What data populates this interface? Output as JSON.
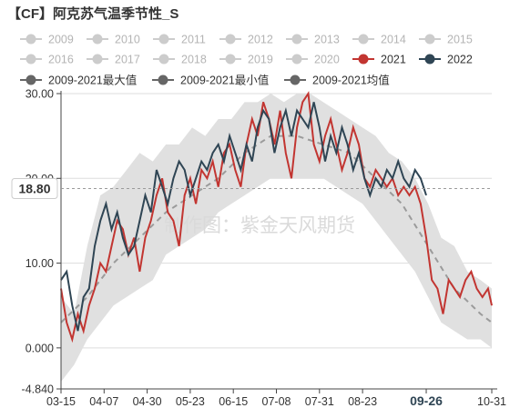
{
  "title": "【CF】阿克苏气温季节性_S",
  "watermark": "制作图：紫金天风期货",
  "colors": {
    "inactive": "#cccccc",
    "active_legend_text": "#333333",
    "inactive_legend_text": "#b4b4b4",
    "series_2021": "#c23531",
    "series_2022": "#2f4554",
    "band": "#e0e0e0",
    "avg_line": "#9b9b9b",
    "axis": "#444444",
    "grid": "#dddddd"
  },
  "legend": {
    "row1": [
      "2009",
      "2010",
      "2011",
      "2012",
      "2013",
      "2014",
      "2015"
    ],
    "row2": [
      "2016",
      "2017",
      "2018",
      "2019",
      "2020",
      "2021",
      "2022"
    ],
    "row3": [
      "2009-2021最大值",
      "2009-2021最小值",
      "2009-2021均值"
    ]
  },
  "axis_pointer_label": "18.80",
  "highlighted_x_label": "09-26",
  "chart_data": {
    "type": "line",
    "ylim": [
      -4.84,
      30.0
    ],
    "yticks": [
      "30.00",
      "20.00",
      "10.00",
      "0.000",
      "-4.840"
    ],
    "xticks": [
      "03-15",
      "04-07",
      "04-30",
      "05-23",
      "06-15",
      "07-08",
      "07-31",
      "08-23",
      "09-26",
      "10-31"
    ],
    "xtick_dates": [
      "03-15",
      "04-07",
      "04-30",
      "05-23",
      "06-15",
      "07-08",
      "07-31",
      "08-23",
      "09-26",
      "10-31"
    ],
    "x_start": "03-15",
    "x_end": "10-31",
    "max_band": [
      [
        "03-15",
        6
      ],
      [
        "03-22",
        4
      ],
      [
        "03-29",
        12
      ],
      [
        "04-05",
        18
      ],
      [
        "04-12",
        19
      ],
      [
        "04-19",
        21
      ],
      [
        "04-26",
        23
      ],
      [
        "05-03",
        22
      ],
      [
        "05-10",
        24
      ],
      [
        "05-17",
        24
      ],
      [
        "05-24",
        26
      ],
      [
        "05-31",
        25
      ],
      [
        "06-07",
        27
      ],
      [
        "06-14",
        27
      ],
      [
        "06-21",
        29
      ],
      [
        "06-28",
        29
      ],
      [
        "07-05",
        30
      ],
      [
        "07-12",
        29
      ],
      [
        "07-19",
        30
      ],
      [
        "07-26",
        30
      ],
      [
        "08-02",
        29
      ],
      [
        "08-09",
        28
      ],
      [
        "08-16",
        27
      ],
      [
        "08-23",
        26
      ],
      [
        "08-30",
        25
      ],
      [
        "09-06",
        23
      ],
      [
        "09-13",
        22
      ],
      [
        "09-20",
        20
      ],
      [
        "09-27",
        17
      ],
      [
        "10-04",
        13
      ],
      [
        "10-11",
        12
      ],
      [
        "10-18",
        9
      ],
      [
        "10-25",
        8
      ],
      [
        "10-31",
        7
      ]
    ],
    "min_band": [
      [
        "03-15",
        -4
      ],
      [
        "03-22",
        -2
      ],
      [
        "03-29",
        1
      ],
      [
        "04-05",
        3
      ],
      [
        "04-12",
        5
      ],
      [
        "04-19",
        6
      ],
      [
        "04-26",
        7
      ],
      [
        "05-03",
        8
      ],
      [
        "05-10",
        11
      ],
      [
        "05-17",
        12
      ],
      [
        "05-24",
        13
      ],
      [
        "05-31",
        14
      ],
      [
        "06-07",
        16
      ],
      [
        "06-14",
        17
      ],
      [
        "06-21",
        18
      ],
      [
        "06-28",
        19
      ],
      [
        "07-05",
        20
      ],
      [
        "07-12",
        20
      ],
      [
        "07-19",
        20
      ],
      [
        "07-26",
        20
      ],
      [
        "08-02",
        20
      ],
      [
        "08-09",
        19
      ],
      [
        "08-16",
        18
      ],
      [
        "08-23",
        17
      ],
      [
        "08-30",
        15
      ],
      [
        "09-06",
        13
      ],
      [
        "09-13",
        11
      ],
      [
        "09-20",
        9
      ],
      [
        "09-27",
        6
      ],
      [
        "10-04",
        3
      ],
      [
        "10-11",
        2
      ],
      [
        "10-18",
        1
      ],
      [
        "10-25",
        1
      ],
      [
        "10-31",
        0
      ]
    ],
    "series": [
      {
        "name": "2021",
        "points": [
          [
            "03-15",
            7
          ],
          [
            "03-18",
            3
          ],
          [
            "03-21",
            1
          ],
          [
            "03-24",
            4
          ],
          [
            "03-27",
            2
          ],
          [
            "03-30",
            5
          ],
          [
            "04-02",
            7
          ],
          [
            "04-05",
            10
          ],
          [
            "04-08",
            9
          ],
          [
            "04-11",
            12
          ],
          [
            "04-14",
            15
          ],
          [
            "04-17",
            14
          ],
          [
            "04-20",
            11
          ],
          [
            "04-23",
            13
          ],
          [
            "04-26",
            9
          ],
          [
            "04-29",
            13
          ],
          [
            "05-02",
            15
          ],
          [
            "05-05",
            18
          ],
          [
            "05-08",
            20
          ],
          [
            "05-11",
            16
          ],
          [
            "05-14",
            15
          ],
          [
            "05-17",
            12
          ],
          [
            "05-20",
            18
          ],
          [
            "05-23",
            20
          ],
          [
            "05-26",
            17
          ],
          [
            "05-29",
            21
          ],
          [
            "06-01",
            20
          ],
          [
            "06-04",
            22
          ],
          [
            "06-07",
            19
          ],
          [
            "06-10",
            23
          ],
          [
            "06-13",
            24
          ],
          [
            "06-16",
            21
          ],
          [
            "06-19",
            19
          ],
          [
            "06-22",
            24
          ],
          [
            "06-25",
            27
          ],
          [
            "06-28",
            25
          ],
          [
            "07-01",
            29
          ],
          [
            "07-04",
            27
          ],
          [
            "07-07",
            24
          ],
          [
            "07-10",
            28
          ],
          [
            "07-13",
            23
          ],
          [
            "07-16",
            20
          ],
          [
            "07-19",
            26
          ],
          [
            "07-22",
            29
          ],
          [
            "07-25",
            30
          ],
          [
            "07-28",
            24
          ],
          [
            "07-31",
            22
          ],
          [
            "08-03",
            25
          ],
          [
            "08-06",
            27
          ],
          [
            "08-09",
            24
          ],
          [
            "08-12",
            21
          ],
          [
            "08-15",
            23
          ],
          [
            "08-18",
            26
          ],
          [
            "08-21",
            24
          ],
          [
            "08-24",
            20
          ],
          [
            "08-27",
            19
          ],
          [
            "08-30",
            21
          ],
          [
            "09-02",
            20
          ],
          [
            "09-05",
            19
          ],
          [
            "09-08",
            20
          ],
          [
            "09-11",
            18
          ],
          [
            "09-14",
            19
          ],
          [
            "09-17",
            18
          ],
          [
            "09-20",
            19
          ],
          [
            "09-23",
            17
          ],
          [
            "09-26",
            13
          ],
          [
            "09-29",
            8
          ],
          [
            "10-02",
            7
          ],
          [
            "10-05",
            4
          ],
          [
            "10-08",
            8
          ],
          [
            "10-11",
            7
          ],
          [
            "10-14",
            6
          ],
          [
            "10-17",
            8
          ],
          [
            "10-20",
            9
          ],
          [
            "10-23",
            7
          ],
          [
            "10-26",
            6
          ],
          [
            "10-29",
            7
          ],
          [
            "10-31",
            5
          ]
        ]
      },
      {
        "name": "2022",
        "points": [
          [
            "03-15",
            8
          ],
          [
            "03-18",
            9
          ],
          [
            "03-21",
            5
          ],
          [
            "03-24",
            2
          ],
          [
            "03-27",
            6
          ],
          [
            "03-30",
            7
          ],
          [
            "04-02",
            12
          ],
          [
            "04-05",
            15
          ],
          [
            "04-08",
            17
          ],
          [
            "04-11",
            14
          ],
          [
            "04-14",
            16
          ],
          [
            "04-17",
            13
          ],
          [
            "04-20",
            11
          ],
          [
            "04-23",
            12
          ],
          [
            "04-26",
            15
          ],
          [
            "04-29",
            18
          ],
          [
            "05-02",
            16
          ],
          [
            "05-05",
            21
          ],
          [
            "05-08",
            19
          ],
          [
            "05-11",
            17
          ],
          [
            "05-14",
            20
          ],
          [
            "05-17",
            22
          ],
          [
            "05-20",
            21
          ],
          [
            "05-23",
            18
          ],
          [
            "05-26",
            20
          ],
          [
            "05-29",
            22
          ],
          [
            "06-01",
            21
          ],
          [
            "06-04",
            23
          ],
          [
            "06-07",
            24
          ],
          [
            "06-10",
            22
          ],
          [
            "06-13",
            25
          ],
          [
            "06-16",
            23
          ],
          [
            "06-19",
            21
          ],
          [
            "06-22",
            24
          ],
          [
            "06-25",
            22
          ],
          [
            "06-28",
            26
          ],
          [
            "07-01",
            28
          ],
          [
            "07-04",
            27
          ],
          [
            "07-07",
            23
          ],
          [
            "07-10",
            26
          ],
          [
            "07-13",
            28
          ],
          [
            "07-16",
            25
          ],
          [
            "07-19",
            28
          ],
          [
            "07-22",
            27
          ],
          [
            "07-25",
            26
          ],
          [
            "07-28",
            29
          ],
          [
            "07-31",
            26
          ],
          [
            "08-03",
            22
          ],
          [
            "08-06",
            25
          ],
          [
            "08-09",
            23
          ],
          [
            "08-12",
            26
          ],
          [
            "08-15",
            24
          ],
          [
            "08-18",
            21
          ],
          [
            "08-21",
            23
          ],
          [
            "08-24",
            20
          ],
          [
            "08-27",
            18
          ],
          [
            "08-30",
            20
          ],
          [
            "09-02",
            19
          ],
          [
            "09-05",
            21
          ],
          [
            "09-08",
            20
          ],
          [
            "09-11",
            22
          ],
          [
            "09-14",
            20
          ],
          [
            "09-17",
            19
          ],
          [
            "09-20",
            21
          ],
          [
            "09-23",
            20
          ],
          [
            "09-26",
            18
          ]
        ]
      }
    ],
    "avg_series": [
      [
        "03-15",
        3
      ],
      [
        "03-29",
        6
      ],
      [
        "04-12",
        10
      ],
      [
        "04-26",
        13
      ],
      [
        "05-10",
        16
      ],
      [
        "05-24",
        18
      ],
      [
        "06-07",
        20
      ],
      [
        "06-21",
        23
      ],
      [
        "07-05",
        25
      ],
      [
        "07-19",
        25
      ],
      [
        "08-02",
        24
      ],
      [
        "08-16",
        23
      ],
      [
        "08-30",
        20
      ],
      [
        "09-13",
        17
      ],
      [
        "09-27",
        12
      ],
      [
        "10-11",
        7
      ],
      [
        "10-25",
        4
      ],
      [
        "10-31",
        3
      ]
    ]
  }
}
